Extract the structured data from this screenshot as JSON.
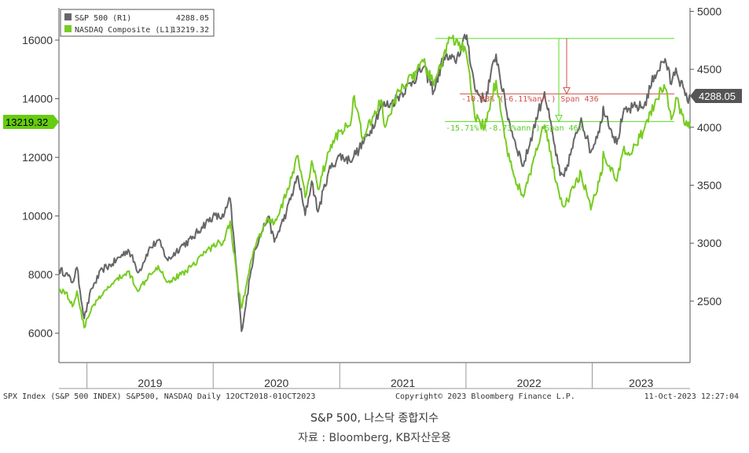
{
  "chart_data": {
    "type": "line",
    "legend": {
      "placement": "top-left",
      "entries": [
        {
          "name": "S&P 500 (R1)",
          "value": "4288.05",
          "color": "#666666"
        },
        {
          "name": "NASDAQ Composite (L1)",
          "value": "13219.32",
          "color": "#77cc22"
        }
      ]
    },
    "left_axis": {
      "ticks": [
        "16000",
        "14000",
        "12000",
        "10000",
        "8000",
        "6000"
      ],
      "range": [
        5000,
        17100
      ]
    },
    "right_axis": {
      "ticks": [
        "5000",
        "4500",
        "4000",
        "3500",
        "3000",
        "2500"
      ],
      "range": [
        1970,
        5030
      ]
    },
    "x_axis": {
      "tick_labels": [
        "2019",
        "2020",
        "2021",
        "2022",
        "2023"
      ],
      "range": [
        "2018-10-12",
        "2023-10-11"
      ]
    },
    "last_value_tags": {
      "right": "4288.05",
      "left": "13219.32"
    },
    "annotations": {
      "red": "-10.88% (-6.11%ann.) Span 436",
      "green": "-15.71% (-8.73%ann.) Span 467"
    },
    "series": [
      {
        "name": "S&P 500 (R1)",
        "axis": "right",
        "color": "#666666",
        "points": [
          [
            "2018-10-12",
            2770
          ],
          [
            "2018-11-01",
            2740
          ],
          [
            "2018-11-20",
            2660
          ],
          [
            "2018-12-03",
            2790
          ],
          [
            "2018-12-24",
            2350
          ],
          [
            "2019-01-15",
            2610
          ],
          [
            "2019-02-15",
            2775
          ],
          [
            "2019-03-15",
            2820
          ],
          [
            "2019-04-30",
            2945
          ],
          [
            "2019-05-31",
            2750
          ],
          [
            "2019-06-28",
            2940
          ],
          [
            "2019-07-26",
            3025
          ],
          [
            "2019-08-23",
            2850
          ],
          [
            "2019-09-30",
            2975
          ],
          [
            "2019-10-31",
            3035
          ],
          [
            "2019-11-29",
            3140
          ],
          [
            "2019-12-31",
            3230
          ],
          [
            "2020-01-31",
            3225
          ],
          [
            "2020-02-19",
            3385
          ],
          [
            "2020-03-09",
            2750
          ],
          [
            "2020-03-23",
            2240
          ],
          [
            "2020-04-29",
            2940
          ],
          [
            "2020-06-08",
            3230
          ],
          [
            "2020-06-26",
            3010
          ],
          [
            "2020-07-31",
            3270
          ],
          [
            "2020-09-02",
            3580
          ],
          [
            "2020-09-23",
            3240
          ],
          [
            "2020-10-12",
            3535
          ],
          [
            "2020-10-30",
            3270
          ],
          [
            "2020-11-30",
            3620
          ],
          [
            "2020-12-31",
            3755
          ],
          [
            "2021-01-29",
            3715
          ],
          [
            "2021-02-26",
            3810
          ],
          [
            "2021-03-31",
            3970
          ],
          [
            "2021-04-30",
            4180
          ],
          [
            "2021-05-31",
            4205
          ],
          [
            "2021-06-30",
            4300
          ],
          [
            "2021-07-30",
            4395
          ],
          [
            "2021-08-31",
            4520
          ],
          [
            "2021-09-30",
            4310
          ],
          [
            "2021-10-29",
            4605
          ],
          [
            "2021-11-30",
            4570
          ],
          [
            "2021-12-31",
            4765
          ],
          [
            "2022-01-03",
            4796
          ],
          [
            "2022-01-27",
            4330
          ],
          [
            "2022-02-24",
            4225
          ],
          [
            "2022-03-29",
            4630
          ],
          [
            "2022-04-29",
            4130
          ],
          [
            "2022-05-20",
            3900
          ],
          [
            "2022-06-16",
            3665
          ],
          [
            "2022-07-29",
            4130
          ],
          [
            "2022-08-16",
            4305
          ],
          [
            "2022-09-30",
            3585
          ],
          [
            "2022-10-12",
            3577
          ],
          [
            "2022-11-30",
            4080
          ],
          [
            "2022-12-28",
            3785
          ],
          [
            "2023-01-31",
            4075
          ],
          [
            "2023-02-02",
            4180
          ],
          [
            "2023-03-13",
            3855
          ],
          [
            "2023-03-31",
            4110
          ],
          [
            "2023-04-28",
            4170
          ],
          [
            "2023-05-31",
            4180
          ],
          [
            "2023-06-30",
            4450
          ],
          [
            "2023-07-31",
            4590
          ],
          [
            "2023-08-18",
            4370
          ],
          [
            "2023-08-31",
            4510
          ],
          [
            "2023-09-27",
            4275
          ],
          [
            "2023-10-03",
            4230
          ],
          [
            "2023-10-11",
            4288
          ]
        ]
      },
      {
        "name": "NASDAQ Composite (L1)",
        "axis": "left",
        "color": "#77cc22",
        "points": [
          [
            "2018-10-12",
            7500
          ],
          [
            "2018-11-01",
            7400
          ],
          [
            "2018-11-20",
            6910
          ],
          [
            "2018-12-03",
            7440
          ],
          [
            "2018-12-24",
            6190
          ],
          [
            "2019-01-15",
            6900
          ],
          [
            "2019-02-15",
            7300
          ],
          [
            "2019-03-15",
            7700
          ],
          [
            "2019-04-30",
            8100
          ],
          [
            "2019-05-31",
            7450
          ],
          [
            "2019-06-28",
            8000
          ],
          [
            "2019-07-26",
            8300
          ],
          [
            "2019-08-23",
            7750
          ],
          [
            "2019-09-30",
            8000
          ],
          [
            "2019-10-31",
            8300
          ],
          [
            "2019-11-29",
            8660
          ],
          [
            "2019-12-31",
            8970
          ],
          [
            "2020-01-31",
            9150
          ],
          [
            "2020-02-19",
            9820
          ],
          [
            "2020-03-09",
            7950
          ],
          [
            "2020-03-23",
            6860
          ],
          [
            "2020-04-29",
            8900
          ],
          [
            "2020-06-08",
            9920
          ],
          [
            "2020-06-26",
            9760
          ],
          [
            "2020-07-31",
            10750
          ],
          [
            "2020-09-02",
            12060
          ],
          [
            "2020-09-23",
            10630
          ],
          [
            "2020-10-12",
            11880
          ],
          [
            "2020-10-30",
            10910
          ],
          [
            "2020-11-30",
            12200
          ],
          [
            "2020-12-31",
            12890
          ],
          [
            "2021-01-29",
            13070
          ],
          [
            "2021-02-12",
            14100
          ],
          [
            "2021-03-08",
            12610
          ],
          [
            "2021-04-30",
            13960
          ],
          [
            "2021-05-12",
            13030
          ],
          [
            "2021-06-30",
            14500
          ],
          [
            "2021-07-30",
            14670
          ],
          [
            "2021-08-31",
            15260
          ],
          [
            "2021-09-30",
            14450
          ],
          [
            "2021-10-29",
            15500
          ],
          [
            "2021-11-19",
            16057
          ],
          [
            "2021-12-31",
            15650
          ],
          [
            "2022-01-27",
            13350
          ],
          [
            "2022-02-24",
            13040
          ],
          [
            "2022-03-29",
            14620
          ],
          [
            "2022-04-29",
            12330
          ],
          [
            "2022-05-20",
            11350
          ],
          [
            "2022-06-16",
            10650
          ],
          [
            "2022-07-29",
            12400
          ],
          [
            "2022-08-16",
            13100
          ],
          [
            "2022-09-30",
            10580
          ],
          [
            "2022-10-13",
            10320
          ],
          [
            "2022-11-30",
            11470
          ],
          [
            "2022-12-28",
            10210
          ],
          [
            "2023-01-31",
            11580
          ],
          [
            "2023-02-02",
            12200
          ],
          [
            "2023-03-13",
            11190
          ],
          [
            "2023-03-31",
            12220
          ],
          [
            "2023-04-28",
            12230
          ],
          [
            "2023-05-31",
            12935
          ],
          [
            "2023-06-30",
            13790
          ],
          [
            "2023-07-19",
            14360
          ],
          [
            "2023-07-31",
            14350
          ],
          [
            "2023-08-18",
            13290
          ],
          [
            "2023-08-31",
            14035
          ],
          [
            "2023-09-27",
            13090
          ],
          [
            "2023-10-03",
            13060
          ],
          [
            "2023-10-11",
            13219
          ]
        ]
      }
    ],
    "footer": {
      "left": "SPX Index (S&P 500 INDEX) S&P500, NASDAQ  Daily 12OCT2018-01OCT2023",
      "center": "Copyright© 2023 Bloomberg Finance L.P.",
      "right": "11-Oct-2023 12:27:04"
    }
  },
  "caption": "S&P 500, 나스닥 종합지수",
  "source": "자료 : Bloomberg, KB자산운용"
}
